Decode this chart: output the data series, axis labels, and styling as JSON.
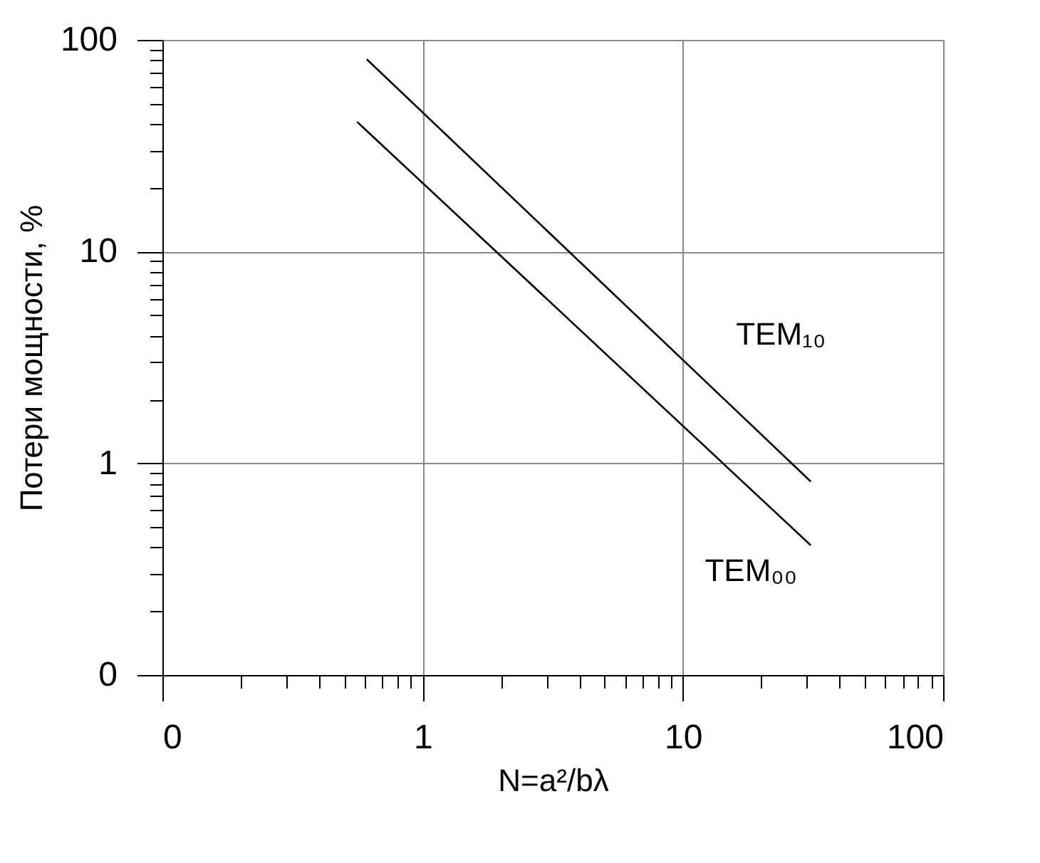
{
  "chart_data": {
    "type": "line",
    "xlabel": "N=a²/bλ",
    "ylabel": "Потери мощности, %",
    "log": "xy",
    "grid": true,
    "line_style": "solid",
    "marker": "none",
    "xlim": [
      0.1,
      100
    ],
    "ylim": [
      0.1,
      100
    ],
    "xticks": [
      {
        "value": 0.1,
        "label": "0"
      },
      {
        "value": 0.2,
        "label": null
      },
      {
        "value": 0.3,
        "label": null
      },
      {
        "value": 0.4,
        "label": null
      },
      {
        "value": 0.5,
        "label": null
      },
      {
        "value": 0.6,
        "label": null
      },
      {
        "value": 0.7,
        "label": null
      },
      {
        "value": 0.8,
        "label": null
      },
      {
        "value": 0.9,
        "label": null
      },
      1,
      {
        "value": 2,
        "label": null
      },
      {
        "value": 3,
        "label": null
      },
      {
        "value": 4,
        "label": null
      },
      {
        "value": 5,
        "label": null
      },
      {
        "value": 6,
        "label": null
      },
      {
        "value": 7,
        "label": null
      },
      {
        "value": 8,
        "label": null
      },
      {
        "value": 9,
        "label": null
      },
      10,
      {
        "value": 20,
        "label": null
      },
      {
        "value": 30,
        "label": null
      },
      {
        "value": 40,
        "label": null
      },
      {
        "value": 50,
        "label": null
      },
      {
        "value": 60,
        "label": null
      },
      {
        "value": 70,
        "label": null
      },
      {
        "value": 80,
        "label": null
      },
      {
        "value": 90,
        "label": null
      },
      100
    ],
    "yticks": [
      {
        "value": 0.1,
        "label": "0"
      },
      {
        "value": 0.2,
        "label": null
      },
      {
        "value": 0.3,
        "label": null
      },
      {
        "value": 0.4,
        "label": null
      },
      {
        "value": 0.5,
        "label": null
      },
      {
        "value": 0.6,
        "label": null
      },
      {
        "value": 0.7,
        "label": null
      },
      {
        "value": 0.8,
        "label": null
      },
      {
        "value": 0.9,
        "label": null
      },
      1,
      {
        "value": 2,
        "label": null
      },
      {
        "value": 3,
        "label": null
      },
      {
        "value": 4,
        "label": null
      },
      {
        "value": 5,
        "label": null
      },
      {
        "value": 6,
        "label": null
      },
      {
        "value": 7,
        "label": null
      },
      {
        "value": 8,
        "label": null
      },
      {
        "value": 9,
        "label": null
      },
      10,
      {
        "value": 20,
        "label": null
      },
      {
        "value": 30,
        "label": null
      },
      {
        "value": 40,
        "label": null
      },
      {
        "value": 50,
        "label": null
      },
      {
        "value": 60,
        "label": null
      },
      {
        "value": 70,
        "label": null
      },
      {
        "value": 80,
        "label": null
      },
      {
        "value": 90,
        "label": null
      },
      100
    ],
    "series": [
      {
        "color": "#000000",
        "x": [
          0.61,
          31
        ],
        "values": [
          81,
          0.82
        ]
      },
      {
        "color": "#000000",
        "x": [
          0.56,
          31
        ],
        "values": [
          41,
          0.41
        ]
      }
    ],
    "annotations": [
      "TEM₁₀",
      "TEM₀₀"
    ]
  }
}
